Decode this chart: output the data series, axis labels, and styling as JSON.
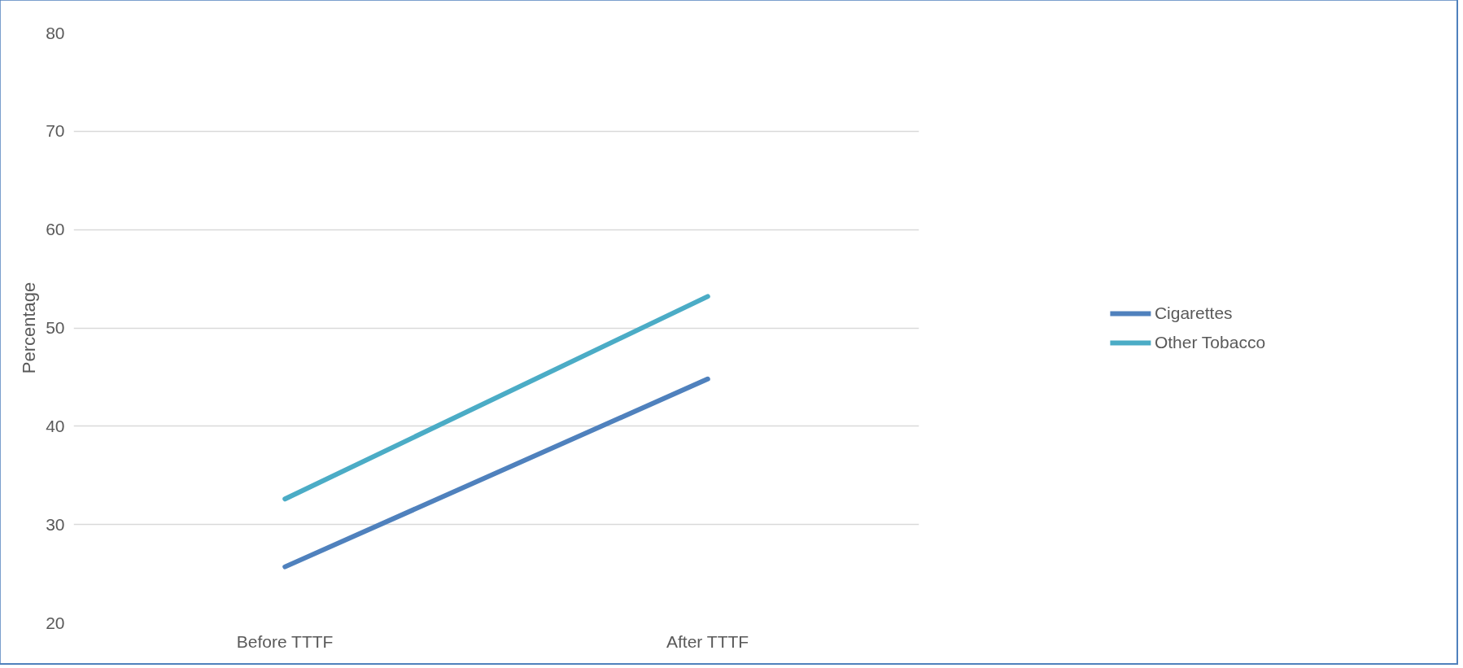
{
  "chart_data": {
    "type": "line",
    "ylabel": "Percentage",
    "categories": [
      "Before TTTF",
      "After TTTF"
    ],
    "series": [
      {
        "name": "Cigarettes",
        "color": "#4f81bd",
        "values": [
          25.7,
          44.8
        ]
      },
      {
        "name": "Other Tobacco",
        "color": "#4bacc6",
        "values": [
          32.6,
          53.2
        ]
      }
    ],
    "ylim": [
      20,
      80
    ],
    "yticks": [
      20,
      30,
      40,
      50,
      60,
      70,
      80
    ],
    "grid": "y",
    "legend": "right",
    "marker": "none",
    "line_style": "solid"
  }
}
